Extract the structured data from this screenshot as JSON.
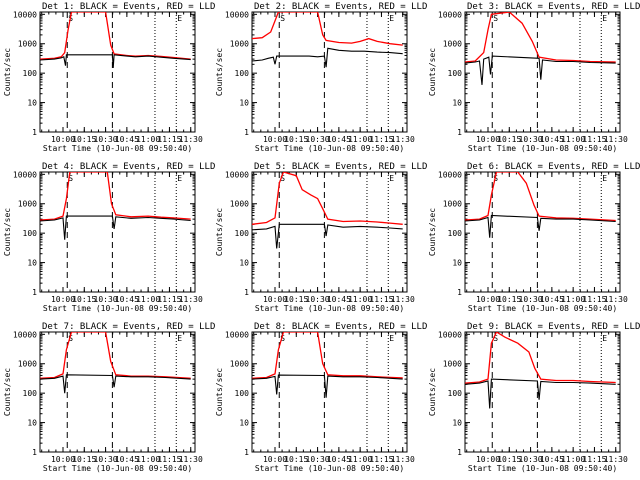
{
  "chart_data": {
    "type": "line",
    "layout": "3x3 grid",
    "start_time_label": "Start Time (10-Jun-08 09:50:40)",
    "ylabel": "Counts/sec",
    "y_scale": "log",
    "ylim": [
      1,
      12000
    ],
    "y_ticks": [
      {
        "value": 1,
        "label": "1"
      },
      {
        "value": 10,
        "label": "10"
      },
      {
        "value": 100,
        "label": "100"
      },
      {
        "value": 1000,
        "label": "1000"
      },
      {
        "value": 10000,
        "label": "10000"
      }
    ],
    "xlim": [
      9.73,
      11.55
    ],
    "x_ticks": [
      {
        "value": 10.0,
        "label": "10:00"
      },
      {
        "value": 10.25,
        "label": "10:15"
      },
      {
        "value": 10.5,
        "label": "10:30"
      },
      {
        "value": 10.75,
        "label": "10:45"
      },
      {
        "value": 11.0,
        "label": "11:00"
      },
      {
        "value": 11.25,
        "label": "11:15"
      },
      {
        "value": 11.5,
        "label": "11:30"
      }
    ],
    "vertical_markers": [
      {
        "x": 10.05,
        "style": "dashed",
        "label": "S"
      },
      {
        "x": 10.58,
        "style": "dashed",
        "label": ""
      },
      {
        "x": 11.08,
        "style": "dotted",
        "label": ""
      },
      {
        "x": 11.33,
        "style": "dotted",
        "label": "E"
      }
    ],
    "series_colors": {
      "events": "#000000",
      "lld": "#ff0000"
    },
    "panels": [
      {
        "title": "Det 1: BLACK = Events, RED = LLD",
        "events": [
          [
            9.73,
            280
          ],
          [
            9.9,
            300
          ],
          [
            9.98,
            330
          ],
          [
            10.01,
            360
          ],
          [
            10.03,
            180
          ],
          [
            10.04,
            420
          ],
          [
            10.58,
            420
          ],
          [
            10.59,
            150
          ],
          [
            10.6,
            420
          ],
          [
            10.75,
            380
          ],
          [
            10.85,
            360
          ],
          [
            11.0,
            380
          ],
          [
            11.15,
            350
          ],
          [
            11.3,
            320
          ],
          [
            11.5,
            290
          ]
        ],
        "lld": [
          [
            9.73,
            300
          ],
          [
            9.9,
            320
          ],
          [
            9.98,
            360
          ],
          [
            10.02,
            500
          ],
          [
            10.06,
            3000
          ],
          [
            10.1,
            12000
          ],
          [
            10.5,
            12000
          ],
          [
            10.56,
            900
          ],
          [
            10.6,
            450
          ],
          [
            10.75,
            400
          ],
          [
            10.85,
            380
          ],
          [
            11.0,
            400
          ],
          [
            11.15,
            370
          ],
          [
            11.3,
            340
          ],
          [
            11.5,
            300
          ]
        ]
      },
      {
        "title": "Det 2: BLACK = Events, RED = LLD",
        "events": [
          [
            9.73,
            260
          ],
          [
            9.85,
            280
          ],
          [
            9.92,
            320
          ],
          [
            9.98,
            350
          ],
          [
            10.0,
            200
          ],
          [
            10.02,
            380
          ],
          [
            10.4,
            380
          ],
          [
            10.5,
            360
          ],
          [
            10.58,
            380
          ],
          [
            10.6,
            160
          ],
          [
            10.62,
            700
          ],
          [
            10.75,
            600
          ],
          [
            10.9,
            560
          ],
          [
            11.05,
            560
          ],
          [
            11.2,
            520
          ],
          [
            11.35,
            500
          ],
          [
            11.5,
            460
          ]
        ],
        "lld": [
          [
            9.73,
            1500
          ],
          [
            9.85,
            1600
          ],
          [
            9.95,
            2500
          ],
          [
            10.0,
            6000
          ],
          [
            10.04,
            12000
          ],
          [
            10.5,
            12000
          ],
          [
            10.56,
            2000
          ],
          [
            10.6,
            1300
          ],
          [
            10.75,
            1100
          ],
          [
            10.9,
            1050
          ],
          [
            11.0,
            1200
          ],
          [
            11.1,
            1500
          ],
          [
            11.2,
            1200
          ],
          [
            11.35,
            1000
          ],
          [
            11.5,
            900
          ]
        ]
      },
      {
        "title": "Det 3: BLACK = Events, RED = LLD",
        "events": [
          [
            9.73,
            220
          ],
          [
            9.85,
            240
          ],
          [
            9.9,
            260
          ],
          [
            9.93,
            40
          ],
          [
            9.95,
            300
          ],
          [
            10.01,
            350
          ],
          [
            10.03,
            90
          ],
          [
            10.05,
            380
          ],
          [
            10.6,
            320
          ],
          [
            10.62,
            60
          ],
          [
            10.64,
            280
          ],
          [
            10.8,
            250
          ],
          [
            11.0,
            250
          ],
          [
            11.2,
            230
          ],
          [
            11.5,
            220
          ]
        ],
        "lld": [
          [
            9.73,
            240
          ],
          [
            9.85,
            260
          ],
          [
            9.95,
            500
          ],
          [
            10.0,
            3000
          ],
          [
            10.04,
            10000
          ],
          [
            10.25,
            12000
          ],
          [
            10.4,
            5000
          ],
          [
            10.52,
            1200
          ],
          [
            10.6,
            350
          ],
          [
            10.8,
            280
          ],
          [
            11.0,
            270
          ],
          [
            11.2,
            250
          ],
          [
            11.5,
            240
          ]
        ]
      },
      {
        "title": "Det 4: BLACK = Events, RED = LLD",
        "events": [
          [
            9.73,
            260
          ],
          [
            9.9,
            280
          ],
          [
            10.0,
            330
          ],
          [
            10.02,
            60
          ],
          [
            10.04,
            380
          ],
          [
            10.58,
            380
          ],
          [
            10.6,
            140
          ],
          [
            10.62,
            360
          ],
          [
            10.8,
            320
          ],
          [
            11.0,
            340
          ],
          [
            11.15,
            320
          ],
          [
            11.3,
            300
          ],
          [
            11.5,
            270
          ]
        ],
        "lld": [
          [
            9.73,
            280
          ],
          [
            9.9,
            300
          ],
          [
            10.0,
            380
          ],
          [
            10.04,
            1500
          ],
          [
            10.08,
            12000
          ],
          [
            10.52,
            12000
          ],
          [
            10.57,
            1000
          ],
          [
            10.62,
            420
          ],
          [
            10.8,
            360
          ],
          [
            11.0,
            380
          ],
          [
            11.15,
            350
          ],
          [
            11.3,
            330
          ],
          [
            11.5,
            300
          ]
        ]
      },
      {
        "title": "Det 5: BLACK = Events, RED = LLD",
        "events": [
          [
            9.73,
            130
          ],
          [
            9.9,
            140
          ],
          [
            10.0,
            170
          ],
          [
            10.02,
            30
          ],
          [
            10.05,
            200
          ],
          [
            10.58,
            200
          ],
          [
            10.6,
            80
          ],
          [
            10.62,
            190
          ],
          [
            10.8,
            160
          ],
          [
            11.0,
            170
          ],
          [
            11.2,
            160
          ],
          [
            11.35,
            150
          ],
          [
            11.5,
            140
          ]
        ],
        "lld": [
          [
            9.73,
            200
          ],
          [
            9.9,
            230
          ],
          [
            10.0,
            330
          ],
          [
            10.05,
            5000
          ],
          [
            10.1,
            12000
          ],
          [
            10.25,
            9000
          ],
          [
            10.32,
            3000
          ],
          [
            10.42,
            2000
          ],
          [
            10.5,
            1500
          ],
          [
            10.57,
            600
          ],
          [
            10.62,
            300
          ],
          [
            10.8,
            250
          ],
          [
            11.0,
            260
          ],
          [
            11.2,
            240
          ],
          [
            11.35,
            220
          ],
          [
            11.5,
            200
          ]
        ]
      },
      {
        "title": "Det 6: BLACK = Events, RED = LLD",
        "events": [
          [
            9.73,
            260
          ],
          [
            9.9,
            280
          ],
          [
            10.0,
            340
          ],
          [
            10.02,
            70
          ],
          [
            10.04,
            400
          ],
          [
            10.58,
            340
          ],
          [
            10.6,
            120
          ],
          [
            10.62,
            320
          ],
          [
            10.8,
            300
          ],
          [
            11.0,
            300
          ],
          [
            11.2,
            280
          ],
          [
            11.5,
            250
          ]
        ],
        "lld": [
          [
            9.73,
            280
          ],
          [
            9.9,
            300
          ],
          [
            10.0,
            400
          ],
          [
            10.04,
            2000
          ],
          [
            10.1,
            12000
          ],
          [
            10.35,
            12000
          ],
          [
            10.45,
            5000
          ],
          [
            10.54,
            900
          ],
          [
            10.6,
            380
          ],
          [
            10.8,
            330
          ],
          [
            11.0,
            320
          ],
          [
            11.2,
            300
          ],
          [
            11.5,
            270
          ]
        ]
      },
      {
        "title": "Det 7: BLACK = Events, RED = LLD",
        "events": [
          [
            9.73,
            300
          ],
          [
            9.9,
            320
          ],
          [
            10.0,
            380
          ],
          [
            10.02,
            100
          ],
          [
            10.04,
            420
          ],
          [
            10.58,
            400
          ],
          [
            10.6,
            160
          ],
          [
            10.62,
            380
          ],
          [
            10.8,
            360
          ],
          [
            11.0,
            360
          ],
          [
            11.2,
            340
          ],
          [
            11.5,
            300
          ]
        ],
        "lld": [
          [
            9.73,
            320
          ],
          [
            9.9,
            340
          ],
          [
            10.0,
            450
          ],
          [
            10.04,
            3000
          ],
          [
            10.1,
            12000
          ],
          [
            10.5,
            12000
          ],
          [
            10.56,
            1200
          ],
          [
            10.62,
            420
          ],
          [
            10.8,
            380
          ],
          [
            11.0,
            380
          ],
          [
            11.2,
            360
          ],
          [
            11.5,
            320
          ]
        ]
      },
      {
        "title": "Det 8: BLACK = Events, RED = LLD",
        "events": [
          [
            9.73,
            300
          ],
          [
            9.9,
            320
          ],
          [
            10.0,
            370
          ],
          [
            10.02,
            90
          ],
          [
            10.04,
            410
          ],
          [
            10.58,
            400
          ],
          [
            10.6,
            70
          ],
          [
            10.62,
            380
          ],
          [
            10.8,
            360
          ],
          [
            11.0,
            360
          ],
          [
            11.2,
            340
          ],
          [
            11.5,
            300
          ]
        ],
        "lld": [
          [
            9.73,
            320
          ],
          [
            9.9,
            340
          ],
          [
            10.0,
            450
          ],
          [
            10.04,
            3000
          ],
          [
            10.1,
            12000
          ],
          [
            10.5,
            12000
          ],
          [
            10.56,
            1000
          ],
          [
            10.62,
            420
          ],
          [
            10.8,
            390
          ],
          [
            11.0,
            390
          ],
          [
            11.2,
            360
          ],
          [
            11.5,
            330
          ]
        ]
      },
      {
        "title": "Det 9: BLACK = Events, RED = LLD",
        "events": [
          [
            9.73,
            200
          ],
          [
            9.9,
            220
          ],
          [
            10.0,
            260
          ],
          [
            10.02,
            30
          ],
          [
            10.04,
            300
          ],
          [
            10.58,
            260
          ],
          [
            10.6,
            60
          ],
          [
            10.62,
            250
          ],
          [
            10.8,
            230
          ],
          [
            11.0,
            230
          ],
          [
            11.2,
            220
          ],
          [
            11.5,
            200
          ]
        ],
        "lld": [
          [
            9.73,
            220
          ],
          [
            9.9,
            240
          ],
          [
            10.0,
            300
          ],
          [
            10.04,
            5000
          ],
          [
            10.1,
            12000
          ],
          [
            10.2,
            8000
          ],
          [
            10.35,
            5000
          ],
          [
            10.48,
            2500
          ],
          [
            10.55,
            700
          ],
          [
            10.62,
            300
          ],
          [
            10.8,
            270
          ],
          [
            11.0,
            270
          ],
          [
            11.2,
            250
          ],
          [
            11.5,
            230
          ]
        ]
      }
    ]
  }
}
